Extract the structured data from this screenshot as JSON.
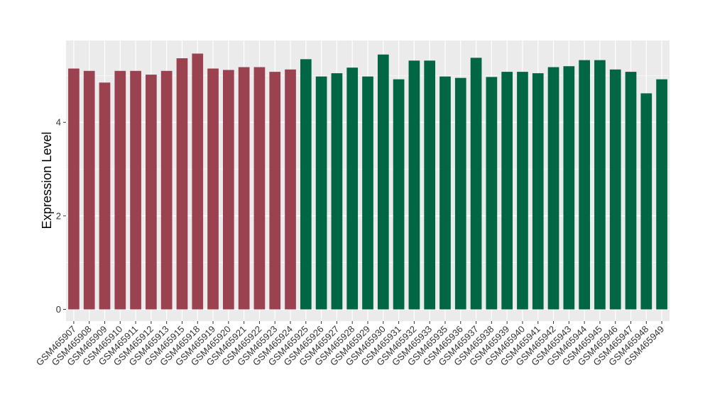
{
  "chart_data": {
    "type": "bar",
    "title": "",
    "xlabel": "",
    "ylabel": "Expression Level",
    "ylim": [
      -0.25,
      5.75
    ],
    "yticks": [
      0,
      2,
      4
    ],
    "grid": true,
    "legend": "none",
    "background": "#EBEBEB",
    "gridColor": "#FFFFFF",
    "categories": [
      "GSM465907",
      "GSM465908",
      "GSM465909",
      "GSM465910",
      "GSM465911",
      "GSM465912",
      "GSM465913",
      "GSM465915",
      "GSM465918",
      "GSM465919",
      "GSM465920",
      "GSM465921",
      "GSM465922",
      "GSM465923",
      "GSM465924",
      "GSM465925",
      "GSM465926",
      "GSM465927",
      "GSM465928",
      "GSM465929",
      "GSM465930",
      "GSM465931",
      "GSM465932",
      "GSM465933",
      "GSM465935",
      "GSM465936",
      "GSM465937",
      "GSM465938",
      "GSM465939",
      "GSM465940",
      "GSM465941",
      "GSM465942",
      "GSM465943",
      "GSM465944",
      "GSM465945",
      "GSM465946",
      "GSM465947",
      "GSM465948",
      "GSM465949"
    ],
    "series": [
      {
        "color": "#9B4251",
        "values": [
          5.15,
          5.1,
          4.85,
          5.1,
          5.1,
          5.02,
          5.1,
          5.37,
          5.47,
          5.15,
          5.12,
          5.18,
          5.18,
          5.08,
          5.13,
          null,
          null,
          null,
          null,
          null,
          null,
          null,
          null,
          null,
          null,
          null,
          null,
          null,
          null,
          null,
          null,
          null,
          null,
          null,
          null,
          null,
          null,
          null,
          null
        ]
      },
      {
        "color": "#006644",
        "values": [
          null,
          null,
          null,
          null,
          null,
          null,
          null,
          null,
          null,
          null,
          null,
          null,
          null,
          null,
          null,
          5.35,
          4.98,
          5.05,
          5.17,
          4.98,
          5.45,
          4.92,
          5.32,
          5.32,
          4.98,
          4.95,
          5.38,
          4.97,
          5.08,
          5.08,
          5.05,
          5.18,
          5.2,
          5.33,
          5.33,
          5.13,
          5.08,
          4.62,
          4.92
        ]
      }
    ]
  }
}
